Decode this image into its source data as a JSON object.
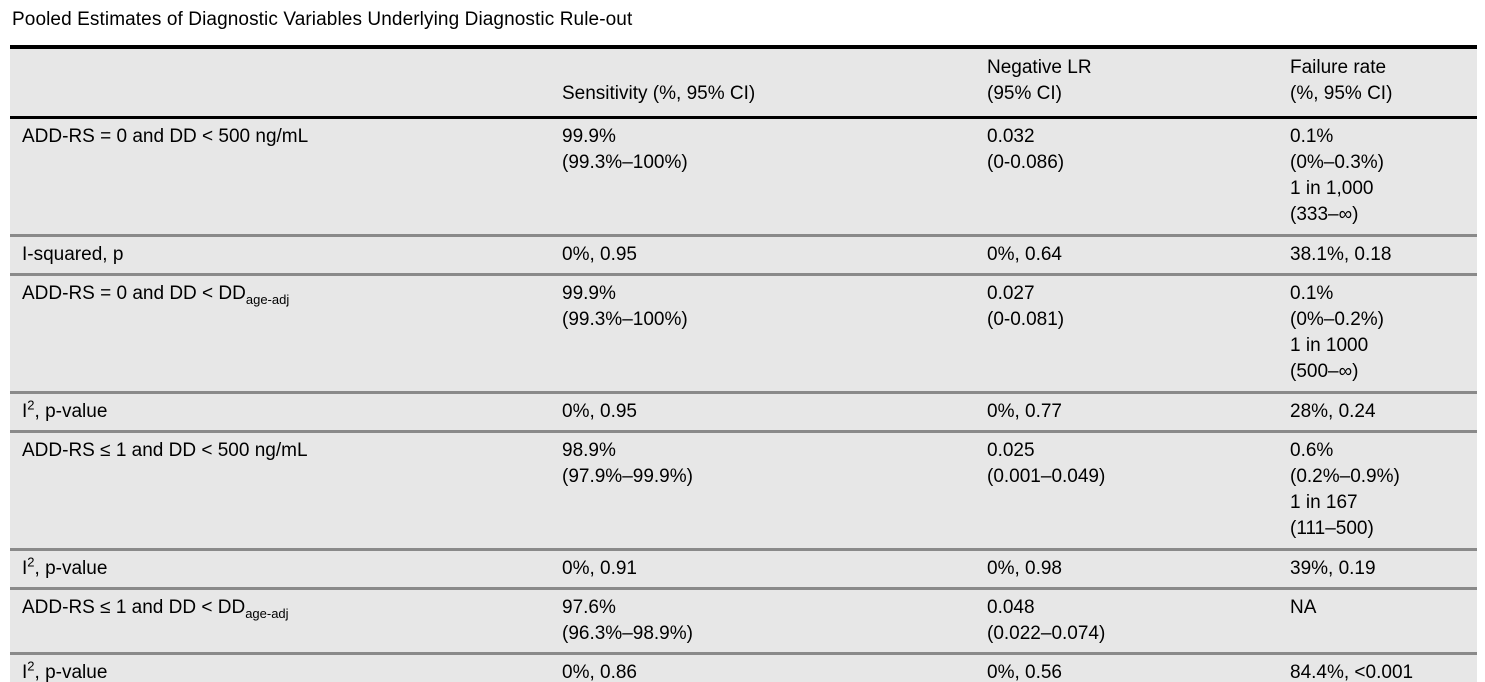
{
  "title": "Pooled Estimates of Diagnostic Variables Underlying Diagnostic Rule-out",
  "colors": {
    "table_background": "#e7e7e7",
    "thick_rule": "#000000",
    "row_separator": "#8a8a8a"
  },
  "table": {
    "columns": [
      {
        "label": ""
      },
      {
        "label": "Sensitivity (%, 95% CI)"
      },
      {
        "label": [
          "Negative LR",
          "(95% CI)"
        ]
      },
      {
        "label": [
          "Failure rate",
          "(%, 95% CI)"
        ]
      }
    ],
    "rows": [
      {
        "label": {
          "pre": "ADD-RS = 0 and DD < 500 ng/mL",
          "sup": "",
          "sub": "",
          "post": ""
        },
        "sensitivity": [
          "99.9%",
          "(99.3%–100%)"
        ],
        "negative_lr": [
          "0.032",
          "(0-0.086)"
        ],
        "failure_rate": [
          "0.1%",
          "(0%–0.3%)",
          "1 in 1,000",
          "(333–∞)"
        ]
      },
      {
        "label": {
          "pre": "I-squared, p",
          "sup": "",
          "sub": "",
          "post": ""
        },
        "sensitivity": [
          "0%, 0.95"
        ],
        "negative_lr": [
          "0%, 0.64"
        ],
        "failure_rate": [
          "38.1%, 0.18"
        ]
      },
      {
        "label": {
          "pre": "ADD-RS = 0 and DD < DD",
          "sup": "",
          "sub": "age-adj",
          "post": ""
        },
        "sensitivity": [
          "99.9%",
          "(99.3%–100%)"
        ],
        "negative_lr": [
          "0.027",
          "(0-0.081)"
        ],
        "failure_rate": [
          "0.1%",
          "(0%–0.2%)",
          "1 in 1000",
          "(500–∞)"
        ]
      },
      {
        "label": {
          "pre": "I",
          "sup": "2",
          "sub": "",
          "post": ", p-value"
        },
        "sensitivity": [
          "0%, 0.95"
        ],
        "negative_lr": [
          "0%, 0.77"
        ],
        "failure_rate": [
          "28%, 0.24"
        ]
      },
      {
        "label": {
          "pre": "ADD-RS ≤ 1 and DD < 500 ng/mL",
          "sup": "",
          "sub": "",
          "post": ""
        },
        "sensitivity": [
          "98.9%",
          "(97.9%–99.9%)"
        ],
        "negative_lr": [
          "0.025",
          "(0.001–0.049)"
        ],
        "failure_rate": [
          "0.6%",
          "(0.2%–0.9%)",
          "1 in 167",
          "(111–500)"
        ]
      },
      {
        "label": {
          "pre": "I",
          "sup": "2",
          "sub": "",
          "post": ", p-value"
        },
        "sensitivity": [
          "0%, 0.91"
        ],
        "negative_lr": [
          "0%, 0.98"
        ],
        "failure_rate": [
          "39%, 0.19"
        ]
      },
      {
        "label": {
          "pre": "ADD-RS ≤ 1 and DD < DD",
          "sup": "",
          "sub": "age-adj",
          "post": ""
        },
        "sensitivity": [
          "97.6%",
          "(96.3%–98.9%)"
        ],
        "negative_lr": [
          "0.048",
          "(0.022–0.074)"
        ],
        "failure_rate": [
          "NA"
        ]
      },
      {
        "label": {
          "pre": "I",
          "sup": "2",
          "sub": "",
          "post": ", p-value"
        },
        "sensitivity": [
          "0%, 0.86"
        ],
        "negative_lr": [
          "0%, 0.56"
        ],
        "failure_rate": [
          "84.4%, <0.001"
        ]
      }
    ]
  }
}
